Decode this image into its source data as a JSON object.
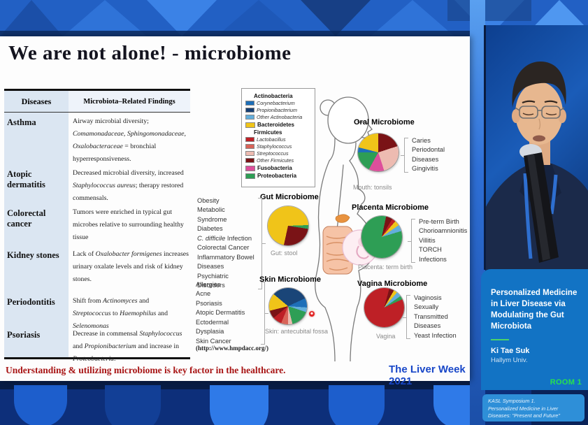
{
  "slide": {
    "title": "We are not alone! - microbiome",
    "footer_note": "Understanding & utilizing microbiome is key factor in the healthcare.",
    "event": "The Liver Week 2021",
    "source_url": "(http://www.hmpdacc.org/)"
  },
  "table": {
    "headers": [
      "Diseases",
      "Microbiota–Related Findings"
    ],
    "rows": [
      {
        "disease": "Asthma",
        "segments": [
          {
            "t": "Airway microbial diversity; "
          },
          {
            "t": "Comamonadaceae, Sphingomonadaceae, Oxalobacteraceae",
            "i": 1
          },
          {
            "t": " = bronchial hyperresponsiveness."
          }
        ]
      },
      {
        "disease": "Atopic dermatitis",
        "segments": [
          {
            "t": "Decreased microbial diversity, increased "
          },
          {
            "t": "Staphylococcus aureus",
            "i": 1
          },
          {
            "t": "; therapy restored commensals."
          }
        ]
      },
      {
        "disease": "Colorectal cancer",
        "segments": [
          {
            "t": "Tumors were enriched in typical gut microbes relative to surrounding healthy tissue"
          }
        ]
      },
      {
        "disease": "Kidney stones",
        "segments": [
          {
            "t": "Lack of "
          },
          {
            "t": "Oxalobacter formigenes",
            "i": 1
          },
          {
            "t": " increases urinary oxalate levels and risk of kidney stones."
          }
        ]
      },
      {
        "disease": "Periodontitis",
        "segments": [
          {
            "t": "Shift from "
          },
          {
            "t": "Actinomyces",
            "i": 1
          },
          {
            "t": " and "
          },
          {
            "t": "Streptococcus",
            "i": 1
          },
          {
            "t": " to "
          },
          {
            "t": "Haemophilus",
            "i": 1
          },
          {
            "t": " and "
          },
          {
            "t": "Selenomonas",
            "i": 1
          }
        ]
      },
      {
        "disease": "Psoriasis",
        "segments": [
          {
            "t": "Decrease in commensal "
          },
          {
            "t": "Staphylococcus",
            "i": 1
          },
          {
            "t": " and "
          },
          {
            "t": "Propionibacterium",
            "i": 1
          },
          {
            "t": " and increase in "
          },
          {
            "t": "Proteobacteria",
            "i": 1
          },
          {
            "t": "."
          }
        ]
      }
    ]
  },
  "legend": {
    "groups": [
      {
        "header": "Actinobacteria",
        "chip": null,
        "items": [
          {
            "label": "Corynebacterium",
            "color": "#1E6FB8"
          },
          {
            "label": "Propionibacterium",
            "color": "#173F73"
          },
          {
            "label": "Other Actinobacteria",
            "color": "#63AEDC"
          }
        ]
      },
      {
        "header": "Bacteroidetes",
        "chip": "#F0C419",
        "items": []
      },
      {
        "header": "Firmicutes",
        "chip": null,
        "items": [
          {
            "label": "Lactobacillus",
            "color": "#BE2026"
          },
          {
            "label": "Staphylococcus",
            "color": "#D96459"
          },
          {
            "label": "Streptococcus",
            "color": "#EDBBB1"
          },
          {
            "label": "Other Firmicutes",
            "color": "#7A1316"
          }
        ]
      },
      {
        "header": "Fusobacteria",
        "chip": "#DD4F9B",
        "items": []
      },
      {
        "header": "Proteobacteria",
        "chip": "#2E9E55",
        "items": []
      }
    ]
  },
  "chart_data": [
    {
      "type": "pie",
      "title": "Oral Microbiome",
      "caption": "Mouth: tonsils",
      "rotate": 0,
      "slices": [
        {
          "label": "Other Firmicutes",
          "value": 20,
          "color": "#7A1316"
        },
        {
          "label": "Streptococcus",
          "value": 25,
          "color": "#EDBBB1"
        },
        {
          "label": "Fusobacteria",
          "value": 13,
          "color": "#DD4F9B"
        },
        {
          "label": "Proteobacteria",
          "value": 17,
          "color": "#2E9E55"
        },
        {
          "label": "Corynebacterium",
          "value": 4,
          "color": "#1E6FB8"
        },
        {
          "label": "Bacteroidetes",
          "value": 21,
          "color": "#F0C419"
        }
      ],
      "diseases": [
        [
          "Caries"
        ],
        [
          "Periodontal Diseases"
        ],
        [
          "Gingivitis"
        ]
      ]
    },
    {
      "type": "pie",
      "title": "Gut Microbiome",
      "caption": "Gut: stool",
      "rotate": 88,
      "slices": [
        {
          "label": "Proteobacteria",
          "value": 3,
          "color": "#2E9E55"
        },
        {
          "label": "Other Firmicutes",
          "value": 26,
          "color": "#7A1316"
        },
        {
          "label": "Bacteroidetes",
          "value": 71,
          "color": "#F0C419"
        }
      ],
      "diseases": [
        [
          "Obesity"
        ],
        [
          "Metabolic Syndrome"
        ],
        [
          "Diabetes"
        ],
        [
          {
            "t": "C. difficile",
            "i": 1
          },
          {
            "t": " Infection"
          }
        ],
        [
          "Colorectal Cancer"
        ],
        [
          "Inflammatory Bowel Diseases"
        ],
        [
          "Psychiatric Disorders"
        ]
      ]
    },
    {
      "type": "pie",
      "title": "Placenta Microbiome",
      "caption": "Placenta: term birth",
      "rotate": 12,
      "slices": [
        {
          "label": "Other Firmicutes",
          "value": 5,
          "color": "#7A1316"
        },
        {
          "label": "Lactobacillus",
          "value": 3,
          "color": "#BE2026"
        },
        {
          "label": "Bacteroidetes",
          "value": 4,
          "color": "#F0C419"
        },
        {
          "label": "Other Actinobacteria",
          "value": 5,
          "color": "#63AEDC"
        },
        {
          "label": "Proteobacteria",
          "value": 83,
          "color": "#2E9E55"
        }
      ],
      "diseases": [
        [
          "Pre-term Birth"
        ],
        [
          "Chorioamnionitis"
        ],
        [
          "Villitis"
        ],
        [
          "TORCH Infections"
        ]
      ]
    },
    {
      "type": "pie",
      "title": "Skin Microbiome",
      "caption": "Skin: antecubital fossa",
      "rotate": -50,
      "slices": [
        {
          "label": "Propionibacterium",
          "value": 32,
          "color": "#1A4578"
        },
        {
          "label": "Corynebacterium",
          "value": 8,
          "color": "#1E6FB8"
        },
        {
          "label": "Other Actinobacteria",
          "value": 4,
          "color": "#63AEDC"
        },
        {
          "label": "Proteobacteria",
          "value": 16,
          "color": "#2E9E55"
        },
        {
          "label": "Streptococcus",
          "value": 4,
          "color": "#EDBBB1"
        },
        {
          "label": "Staphylococcus",
          "value": 6,
          "color": "#D96459"
        },
        {
          "label": "Lactobacillus",
          "value": 8,
          "color": "#BE2026"
        },
        {
          "label": "Other Firmicutes",
          "value": 7,
          "color": "#7A1316"
        },
        {
          "label": "Bacteroidetes",
          "value": 15,
          "color": "#F0C419"
        }
      ],
      "diseases": [
        [
          "Allergies"
        ],
        [
          "Acne"
        ],
        [
          "Psoriasis"
        ],
        [
          "Atopic Dermatitis"
        ],
        [
          "Ectodermal Dysplasia"
        ],
        [
          "Skin Cancer"
        ]
      ]
    },
    {
      "type": "pie",
      "title": "Vagina Microbiome",
      "caption": "Vagina",
      "rotate": 15,
      "slices": [
        {
          "label": "Other Firmicutes",
          "value": 4,
          "color": "#7A1316"
        },
        {
          "label": "Bacteroidetes",
          "value": 3,
          "color": "#F0C419"
        },
        {
          "label": "Other Actinobacteria",
          "value": 4,
          "color": "#63AEDC"
        },
        {
          "label": "Proteobacteria",
          "value": 3,
          "color": "#2E9E55"
        },
        {
          "label": "Lactobacillus",
          "value": 86,
          "color": "#BE2026"
        }
      ],
      "diseases": [
        [
          "Vaginosis"
        ],
        [
          "Sexually Transmitted Diseases"
        ],
        [
          "Yeast Infection"
        ]
      ]
    }
  ],
  "session": {
    "title": "Personalized Medicine in Liver Disease via Modulating the Gut Microbiota",
    "speaker": "Ki Tae Suk",
    "affiliation": "Hallym Univ.",
    "room": "ROOM 1",
    "symposium_lines": [
      "KASL Symposium 1.",
      "Personalized Medicine in Liver",
      "Diseases: \"Present and Future\""
    ]
  },
  "colors": {
    "accent_green": "#27e24f",
    "card_blue": "#1273c4",
    "panel_blue": "#2e8fd8",
    "event_blue": "#1847c8",
    "note_red": "#a81414"
  }
}
